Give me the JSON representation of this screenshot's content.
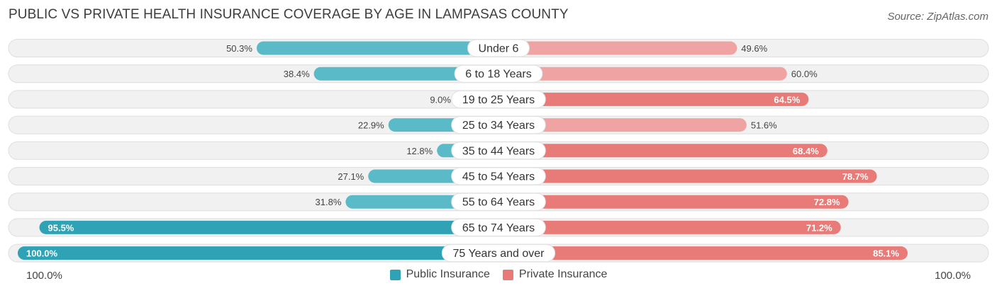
{
  "title": "PUBLIC VS PRIVATE HEALTH INSURANCE COVERAGE BY AGE IN LAMPASAS COUNTY",
  "source": "Source: ZipAtlas.com",
  "colors": {
    "public": "#5bbac7",
    "public_strong": "#2fa3b5",
    "private": "#f0a3a3",
    "private_strong": "#e87a77",
    "track": "#f1f1f1"
  },
  "chart_data": {
    "type": "bar",
    "orientation": "horizontal-diverging",
    "categories": [
      "Under 6",
      "6 to 18 Years",
      "19 to 25 Years",
      "25 to 34 Years",
      "35 to 44 Years",
      "45 to 54 Years",
      "55 to 64 Years",
      "65 to 74 Years",
      "75 Years and over"
    ],
    "series": [
      {
        "name": "Public Insurance",
        "values": [
          50.3,
          38.4,
          9.0,
          22.9,
          12.8,
          27.1,
          31.8,
          95.5,
          100.0
        ]
      },
      {
        "name": "Private Insurance",
        "values": [
          49.6,
          60.0,
          64.5,
          51.6,
          68.4,
          78.7,
          72.8,
          71.2,
          85.1
        ]
      }
    ],
    "value_labels": {
      "public": [
        "50.3%",
        "38.4%",
        "9.0%",
        "22.9%",
        "12.8%",
        "27.1%",
        "31.8%",
        "95.5%",
        "100.0%"
      ],
      "private": [
        "49.6%",
        "60.0%",
        "64.5%",
        "51.6%",
        "68.4%",
        "78.7%",
        "72.8%",
        "71.2%",
        "85.1%"
      ]
    },
    "xlim": [
      0,
      100
    ],
    "axis_left_label": "100.0%",
    "axis_right_label": "100.0%",
    "legend": [
      "Public Insurance",
      "Private Insurance"
    ],
    "legend_position": "bottom-center"
  }
}
